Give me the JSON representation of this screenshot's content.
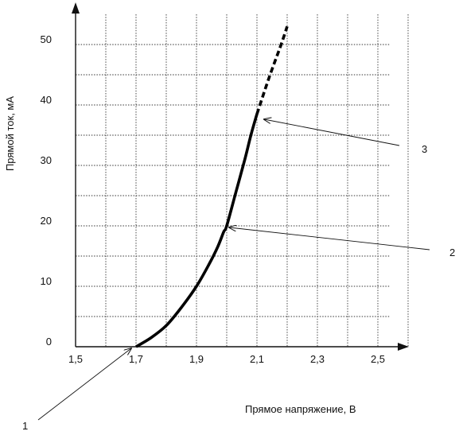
{
  "chart_data": {
    "type": "line",
    "title": "",
    "xlabel": "Прямое напряжение, В",
    "ylabel": "Прямой ток, мА",
    "xlim": [
      1.5,
      2.5
    ],
    "ylim": [
      0,
      50
    ],
    "x_grid_step": 0.1,
    "y_grid_step": 5,
    "x_ticks": [
      {
        "value": 1.5,
        "label": "1,5"
      },
      {
        "value": 1.7,
        "label": "1,7"
      },
      {
        "value": 1.9,
        "label": "1,9"
      },
      {
        "value": 2.1,
        "label": "2,1"
      },
      {
        "value": 2.3,
        "label": "2,3"
      },
      {
        "value": 2.5,
        "label": "2,5"
      }
    ],
    "y_ticks": [
      {
        "value": 0,
        "label": "0"
      },
      {
        "value": 10,
        "label": "10"
      },
      {
        "value": 20,
        "label": "20"
      },
      {
        "value": 30,
        "label": "30"
      },
      {
        "value": 40,
        "label": "40"
      },
      {
        "value": 50,
        "label": "50"
      }
    ],
    "grid": true,
    "series": [
      {
        "style": "solid",
        "x": [
          1.7,
          1.75,
          1.8,
          1.85,
          1.9,
          1.94,
          1.97,
          1.99,
          2.0,
          2.03,
          2.06,
          2.08,
          2.1
        ],
        "y": [
          0,
          1.5,
          3.5,
          6.5,
          10,
          13.5,
          16.5,
          19,
          20,
          25.5,
          31,
          35,
          38.5
        ]
      },
      {
        "style": "dashed",
        "x": [
          2.1,
          2.14,
          2.18,
          2.2
        ],
        "y": [
          38.5,
          44.5,
          50,
          53
        ]
      }
    ],
    "annotations": [
      {
        "label": "1",
        "point": [
          1.7,
          0
        ]
      },
      {
        "label": "2",
        "point": [
          2.01,
          20
        ]
      },
      {
        "label": "3",
        "point": [
          2.11,
          38
        ]
      }
    ]
  }
}
